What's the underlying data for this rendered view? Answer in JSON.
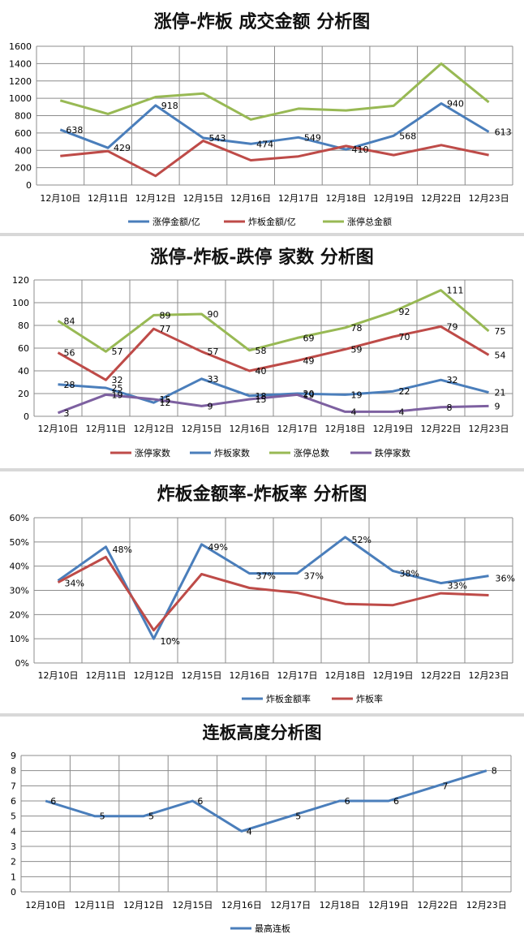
{
  "colors": {
    "blue": "#4a7ebb",
    "red": "#be4b48",
    "green": "#98b954",
    "purple": "#7d60a0",
    "grid": "#8c8c8c"
  },
  "chart_data": [
    {
      "type": "line",
      "title": "涨停-炸板 成交金额 分析图",
      "categories": [
        "12月10日",
        "12月11日",
        "12月12日",
        "12月15日",
        "12月16日",
        "12月17日",
        "12月18日",
        "12月19日",
        "12月22日",
        "12月23日"
      ],
      "ylim": [
        0,
        1600
      ],
      "yticks": [
        0,
        200,
        400,
        600,
        800,
        1000,
        1200,
        1400,
        1600
      ],
      "grid": true,
      "legend_position": "bottom",
      "series": [
        {
          "name": "涨停金额/亿",
          "color": "#4a7ebb",
          "values": [
            638,
            429,
            918,
            543,
            474,
            549,
            410,
            568,
            940,
            613
          ],
          "labels": [
            638,
            429,
            918,
            543,
            474,
            549,
            410,
            568,
            940,
            613
          ]
        },
        {
          "name": "炸板金额/亿",
          "color": "#be4b48",
          "values": [
            335,
            390,
            105,
            510,
            285,
            330,
            450,
            345,
            460,
            345
          ]
        },
        {
          "name": "涨停总金额",
          "color": "#98b954",
          "values": [
            975,
            820,
            1015,
            1055,
            755,
            880,
            860,
            913,
            1400,
            955
          ]
        }
      ]
    },
    {
      "type": "line",
      "title": "涨停-炸板-跌停 家数 分析图",
      "categories": [
        "12月10日",
        "12月11日",
        "12月12日",
        "12月15日",
        "12月16日",
        "12月17日",
        "12月18日",
        "12月19日",
        "12月22日",
        "12月23日"
      ],
      "ylim": [
        0,
        120
      ],
      "yticks": [
        0,
        20,
        40,
        60,
        80,
        100,
        120
      ],
      "grid": true,
      "legend_position": "bottom",
      "series": [
        {
          "name": "涨停家数",
          "color": "#be4b48",
          "values": [
            56,
            32,
            77,
            57,
            40,
            49,
            59,
            70,
            79,
            54
          ],
          "labels": [
            56,
            32,
            77,
            57,
            40,
            49,
            59,
            70,
            79,
            54
          ]
        },
        {
          "name": "炸板家数",
          "color": "#4a7ebb",
          "values": [
            28,
            25,
            12,
            33,
            18,
            20,
            19,
            22,
            32,
            21
          ],
          "labels": [
            28,
            25,
            12,
            33,
            18,
            20,
            19,
            22,
            32,
            21
          ]
        },
        {
          "name": "涨停总数",
          "color": "#98b954",
          "values": [
            84,
            57,
            89,
            90,
            58,
            69,
            78,
            92,
            111,
            75
          ],
          "labels": [
            84,
            57,
            89,
            90,
            58,
            69,
            78,
            92,
            111,
            75
          ]
        },
        {
          "name": "跌停家数",
          "color": "#7d60a0",
          "values": [
            3,
            19,
            15,
            9,
            15,
            19,
            4,
            4,
            8,
            9
          ],
          "labels": [
            3,
            19,
            15,
            9,
            15,
            19,
            4,
            4,
            8,
            9
          ]
        }
      ]
    },
    {
      "type": "line",
      "title": "炸板金额率-炸板率 分析图",
      "categories": [
        "12月10日",
        "12月11日",
        "12月12日",
        "12月15日",
        "12月16日",
        "12月17日",
        "12月18日",
        "12月19日",
        "12月22日",
        "12月23日"
      ],
      "ylim": [
        0,
        60
      ],
      "yticks": [
        0,
        10,
        20,
        30,
        40,
        50,
        60
      ],
      "ytick_labels": [
        "0%",
        "10%",
        "20%",
        "30%",
        "40%",
        "50%",
        "60%"
      ],
      "grid": true,
      "legend_position": "bottom",
      "series": [
        {
          "name": "炸板金额率",
          "color": "#4a7ebb",
          "values": [
            34,
            48,
            10,
            49,
            37,
            37,
            52,
            38,
            33,
            36
          ],
          "labels": [
            "34%",
            "48%",
            "10%",
            "49%",
            "37%",
            "37%",
            "52%",
            "38%",
            "33%",
            "36%"
          ]
        },
        {
          "name": "炸板率",
          "color": "#be4b48",
          "values": [
            33.3,
            43.8,
            13.5,
            36.7,
            31,
            29,
            24.4,
            23.9,
            28.8,
            28
          ]
        }
      ]
    },
    {
      "type": "line",
      "title": "连板高度分析图",
      "categories": [
        "12月10日",
        "12月11日",
        "12月12日",
        "12月15日",
        "12月16日",
        "12月17日",
        "12月18日",
        "12月19日",
        "12月22日",
        "12月23日"
      ],
      "ylim": [
        0,
        9
      ],
      "yticks": [
        0,
        1,
        2,
        3,
        4,
        5,
        6,
        7,
        8,
        9
      ],
      "grid": true,
      "legend_position": "bottom",
      "series": [
        {
          "name": "最高连板",
          "color": "#4a7ebb",
          "values": [
            6,
            5,
            5,
            6,
            4,
            5,
            6,
            6,
            7,
            8
          ],
          "labels": [
            6,
            5,
            5,
            6,
            4,
            5,
            6,
            6,
            7,
            8
          ]
        }
      ]
    }
  ]
}
